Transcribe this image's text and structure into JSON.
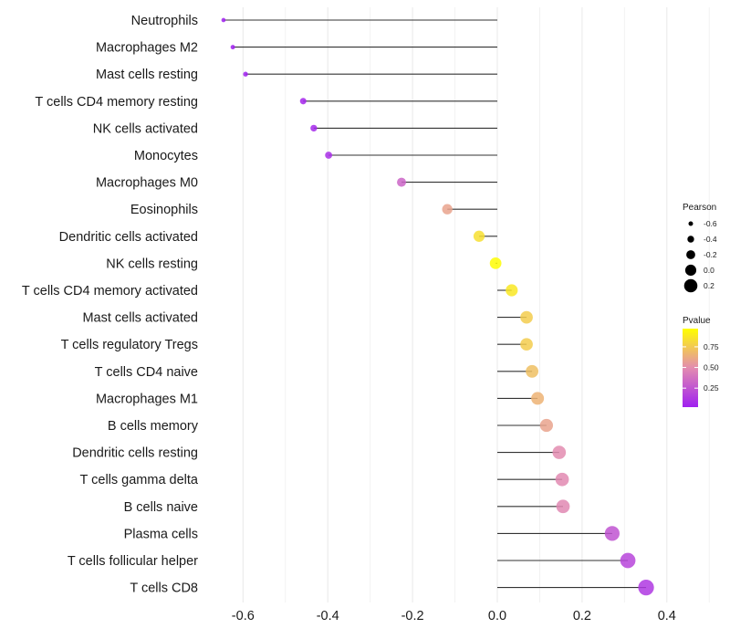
{
  "chart_data": {
    "type": "lollipop",
    "title": "",
    "xlabel": "",
    "ylabel": "",
    "xlim": [
      -0.66,
      0.52
    ],
    "xticks": [
      -0.6,
      -0.4,
      -0.2,
      0.0,
      0.2,
      0.4
    ],
    "xtick_labels": [
      "-0.6",
      "-0.4",
      "-0.2",
      "0.0",
      "0.2",
      "0.4"
    ],
    "grid": true,
    "categories": [
      "Neutrophils",
      "Macrophages M2",
      "Mast cells resting",
      "T cells CD4 memory resting",
      "NK cells activated",
      "Monocytes",
      "Macrophages M0",
      "Eosinophils",
      "Dendritic cells activated",
      "NK cells resting",
      "T cells CD4 memory activated",
      "Mast cells activated",
      "T cells regulatory  Tregs ",
      "T cells CD4 naive",
      "Macrophages M1",
      "B cells memory",
      "Dendritic cells resting",
      "T cells gamma delta",
      "B cells naive",
      "Plasma cells",
      "T cells follicular helper",
      "T cells CD8"
    ],
    "series": [
      {
        "name": "Pearson",
        "values": [
          -0.646,
          -0.624,
          -0.594,
          -0.458,
          -0.433,
          -0.398,
          -0.226,
          -0.118,
          -0.043,
          -0.004,
          0.034,
          0.069,
          0.069,
          0.082,
          0.095,
          0.116,
          0.146,
          0.153,
          0.155,
          0.271,
          0.308,
          0.351
        ]
      },
      {
        "name": "Pvalue",
        "values": [
          0.001,
          0.002,
          0.003,
          0.03,
          0.04,
          0.07,
          0.32,
          0.6,
          0.86,
          0.99,
          0.9,
          0.78,
          0.78,
          0.72,
          0.67,
          0.6,
          0.5,
          0.49,
          0.48,
          0.24,
          0.17,
          0.11
        ]
      }
    ],
    "legend": {
      "size": {
        "title": "Pearson",
        "entries": [
          "-0.6",
          "-0.4",
          "-0.2",
          "0.0",
          "0.2"
        ],
        "values": [
          -0.6,
          -0.4,
          -0.2,
          0.0,
          0.2
        ]
      },
      "color": {
        "title": "Pvalue",
        "ticks": [
          "0.75",
          "0.50",
          "0.25"
        ],
        "tick_values": [
          0.75,
          0.5,
          0.25
        ],
        "range": [
          0.0,
          1.0
        ],
        "low_color": "#a020f0",
        "mid_color": "#e38cb0",
        "high_color": "#ffff00"
      },
      "placement": "right"
    }
  }
}
